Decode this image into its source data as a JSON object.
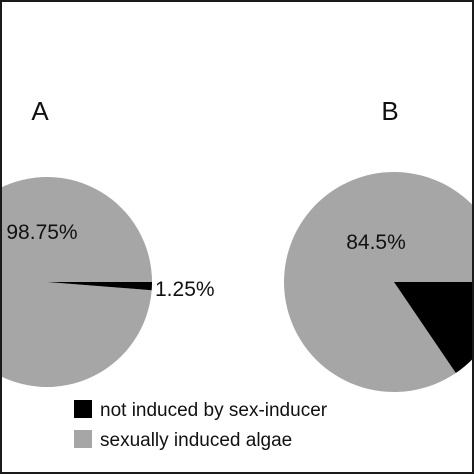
{
  "chart_data": [
    {
      "type": "pie",
      "panel_label": "A",
      "slices": [
        {
          "name": "sexually induced algae",
          "value": 98.75,
          "label": "98.75%",
          "color": "#a6a6a6"
        },
        {
          "name": "not induced by sex-inducer",
          "value": 1.25,
          "label": "1.25%",
          "color": "#000000"
        }
      ]
    },
    {
      "type": "pie",
      "panel_label": "B",
      "slices": [
        {
          "name": "sexually induced algae",
          "value": 84.5,
          "label": "84.5%",
          "color": "#a6a6a6"
        },
        {
          "name": "not induced by sex-inducer",
          "value": 15.5,
          "label": "",
          "color": "#000000"
        }
      ]
    }
  ],
  "legend": [
    {
      "label": "not induced by sex-inducer",
      "color": "#000000"
    },
    {
      "label": "sexually induced algae",
      "color": "#a6a6a6"
    }
  ]
}
